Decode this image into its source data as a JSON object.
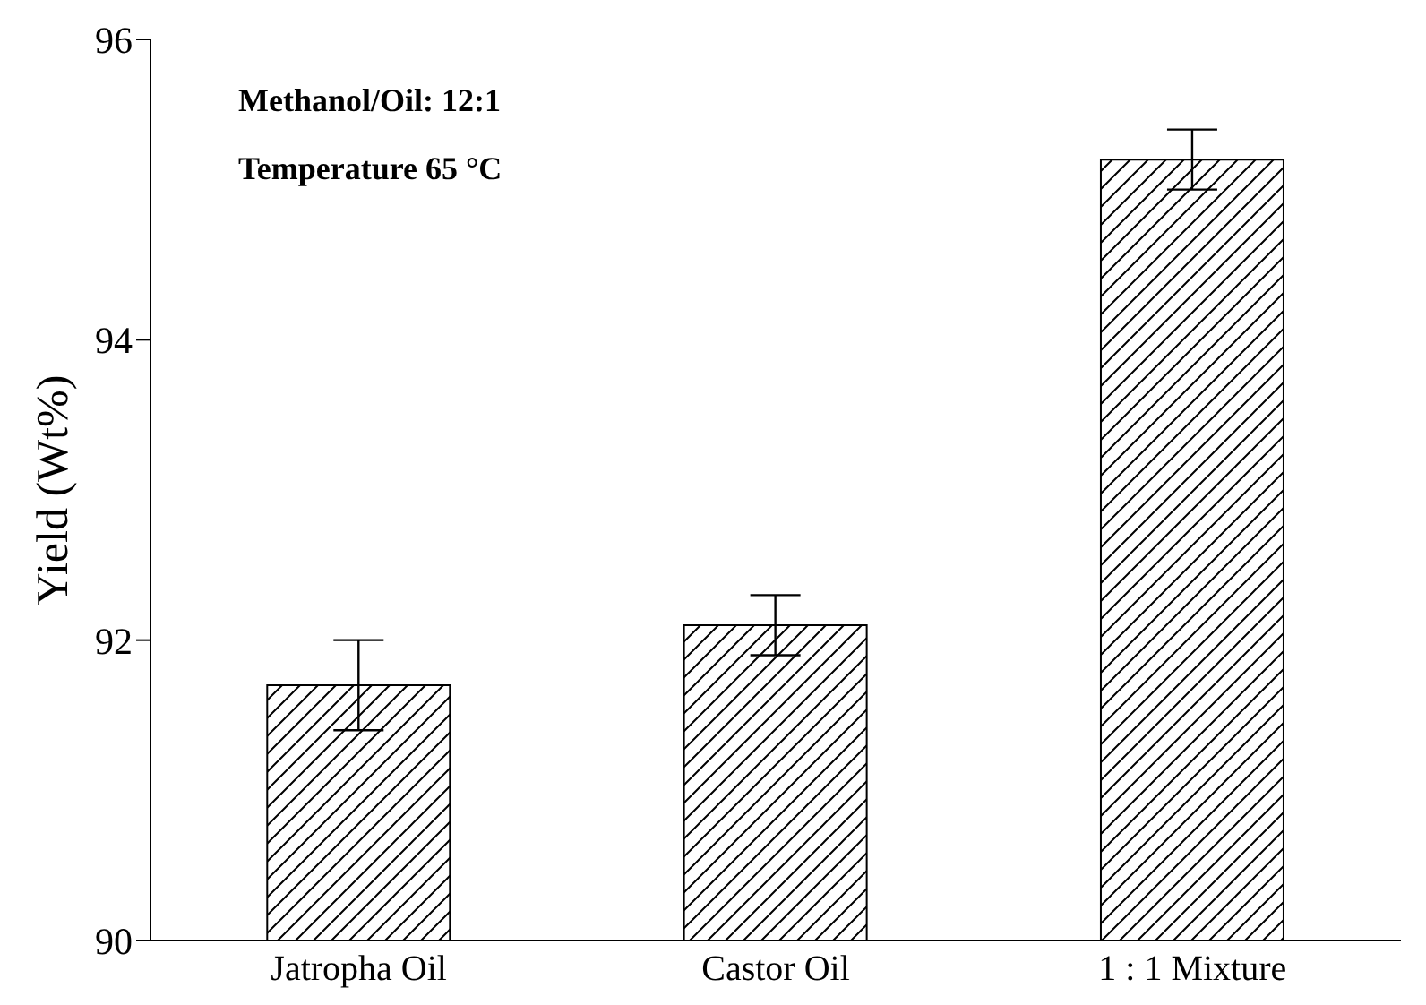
{
  "chart_data": {
    "type": "bar",
    "ylabel": "Yield (Wt%)",
    "categories": [
      "Jatropha Oil",
      "Castor Oil",
      "1 : 1 Mixture"
    ],
    "values": [
      91.7,
      92.1,
      95.2
    ],
    "errors": [
      0.3,
      0.2,
      0.2
    ],
    "color": "#000000",
    "ylim": [
      90,
      96
    ],
    "yticks": [
      90,
      92,
      94,
      96
    ],
    "annotations": [
      "Methanol/Oil: 12:1",
      "Temperature 65 °C"
    ]
  }
}
